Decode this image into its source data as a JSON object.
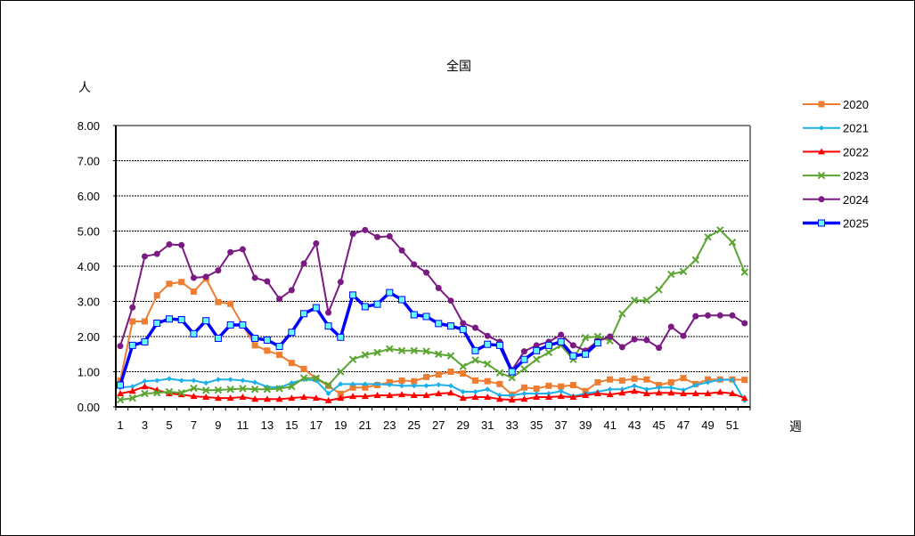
{
  "chart_data": {
    "type": "line",
    "title": "全国",
    "xlabel": "週",
    "ylabel": "人",
    "ylim": [
      0,
      8
    ],
    "yticks": [
      "0.00",
      "1.00",
      "2.00",
      "3.00",
      "4.00",
      "5.00",
      "6.00",
      "7.00",
      "8.00"
    ],
    "xtick_labels": [
      "1",
      "3",
      "5",
      "7",
      "9",
      "11",
      "13",
      "15",
      "17",
      "19",
      "21",
      "23",
      "25",
      "27",
      "29",
      "31",
      "33",
      "35",
      "37",
      "39",
      "41",
      "43",
      "45",
      "47",
      "49",
      "51"
    ],
    "x": [
      1,
      2,
      3,
      4,
      5,
      6,
      7,
      8,
      9,
      10,
      11,
      12,
      13,
      14,
      15,
      16,
      17,
      18,
      19,
      20,
      21,
      22,
      23,
      24,
      25,
      26,
      27,
      28,
      29,
      30,
      31,
      32,
      33,
      34,
      35,
      36,
      37,
      38,
      39,
      40,
      41,
      42,
      43,
      44,
      45,
      46,
      47,
      48,
      49,
      50,
      51,
      52
    ],
    "grid": true,
    "legend_position": "right",
    "series": [
      {
        "name": "2020",
        "color": "#ED7D31",
        "marker": "square",
        "values": [
          0.75,
          2.43,
          2.43,
          3.17,
          3.5,
          3.55,
          3.28,
          3.65,
          2.98,
          2.93,
          2.33,
          1.75,
          1.6,
          1.48,
          1.25,
          1.08,
          0.8,
          0.6,
          0.37,
          0.55,
          0.55,
          0.62,
          0.7,
          0.75,
          0.73,
          0.85,
          0.92,
          1.0,
          0.95,
          0.75,
          0.73,
          0.65,
          0.35,
          0.55,
          0.52,
          0.6,
          0.58,
          0.62,
          0.45,
          0.7,
          0.78,
          0.75,
          0.8,
          0.78,
          0.62,
          0.7,
          0.82,
          0.65,
          0.78,
          0.78,
          0.78,
          0.77
        ]
      },
      {
        "name": "2021",
        "color": "#1CB0EA",
        "marker": "diamond",
        "values": [
          0.55,
          0.58,
          0.73,
          0.75,
          0.8,
          0.75,
          0.75,
          0.68,
          0.78,
          0.78,
          0.75,
          0.7,
          0.57,
          0.55,
          0.68,
          0.78,
          0.75,
          0.38,
          0.65,
          0.65,
          0.65,
          0.65,
          0.63,
          0.6,
          0.6,
          0.6,
          0.63,
          0.6,
          0.43,
          0.43,
          0.5,
          0.33,
          0.33,
          0.38,
          0.38,
          0.38,
          0.45,
          0.3,
          0.38,
          0.43,
          0.5,
          0.5,
          0.6,
          0.5,
          0.55,
          0.55,
          0.48,
          0.62,
          0.7,
          0.77,
          0.77,
          0.18
        ]
      },
      {
        "name": "2022",
        "color": "#FF0000",
        "marker": "triangle",
        "values": [
          0.38,
          0.45,
          0.58,
          0.48,
          0.38,
          0.35,
          0.3,
          0.28,
          0.25,
          0.25,
          0.28,
          0.22,
          0.22,
          0.22,
          0.25,
          0.28,
          0.25,
          0.18,
          0.25,
          0.3,
          0.3,
          0.33,
          0.33,
          0.35,
          0.33,
          0.33,
          0.38,
          0.4,
          0.25,
          0.28,
          0.28,
          0.22,
          0.2,
          0.22,
          0.28,
          0.28,
          0.3,
          0.28,
          0.33,
          0.38,
          0.35,
          0.4,
          0.45,
          0.38,
          0.4,
          0.4,
          0.38,
          0.38,
          0.38,
          0.42,
          0.38,
          0.25
        ]
      },
      {
        "name": "2023",
        "color": "#5BA532",
        "marker": "x",
        "values": [
          0.2,
          0.25,
          0.38,
          0.4,
          0.43,
          0.4,
          0.53,
          0.47,
          0.48,
          0.5,
          0.52,
          0.5,
          0.5,
          0.52,
          0.58,
          0.82,
          0.82,
          0.62,
          1.0,
          1.35,
          1.48,
          1.55,
          1.65,
          1.6,
          1.6,
          1.58,
          1.5,
          1.45,
          1.15,
          1.33,
          1.22,
          0.97,
          0.83,
          1.08,
          1.35,
          1.55,
          1.75,
          1.35,
          1.97,
          2.0,
          1.88,
          2.65,
          3.03,
          3.03,
          3.33,
          3.77,
          3.85,
          4.18,
          4.83,
          5.03,
          4.68,
          3.83
        ]
      },
      {
        "name": "2024",
        "color": "#7B1A83",
        "marker": "circle",
        "values": [
          1.73,
          2.83,
          4.28,
          4.35,
          4.62,
          4.6,
          3.67,
          3.7,
          3.88,
          4.4,
          4.48,
          3.67,
          3.57,
          3.07,
          3.32,
          4.08,
          4.65,
          2.68,
          3.55,
          4.92,
          5.03,
          4.83,
          4.85,
          4.45,
          4.05,
          3.82,
          3.38,
          3.02,
          2.38,
          2.25,
          2.02,
          1.85,
          1.05,
          1.58,
          1.75,
          1.85,
          2.05,
          1.75,
          1.6,
          1.87,
          2.0,
          1.7,
          1.92,
          1.9,
          1.68,
          2.28,
          2.02,
          2.58,
          2.6,
          2.6,
          2.6,
          2.38
        ]
      },
      {
        "name": "2025",
        "color": "#0000FF",
        "marker": "open-square",
        "values": [
          0.62,
          1.75,
          1.85,
          2.38,
          2.5,
          2.48,
          2.08,
          2.45,
          1.95,
          2.33,
          2.33,
          1.95,
          1.9,
          1.72,
          2.12,
          2.65,
          2.82,
          2.3,
          1.98,
          3.18,
          2.85,
          2.92,
          3.25,
          3.05,
          2.62,
          2.57,
          2.37,
          2.3,
          2.2,
          1.6,
          1.78,
          1.75,
          1.0,
          1.35,
          1.6,
          1.75,
          1.85,
          1.45,
          1.5,
          1.82
        ]
      }
    ]
  }
}
